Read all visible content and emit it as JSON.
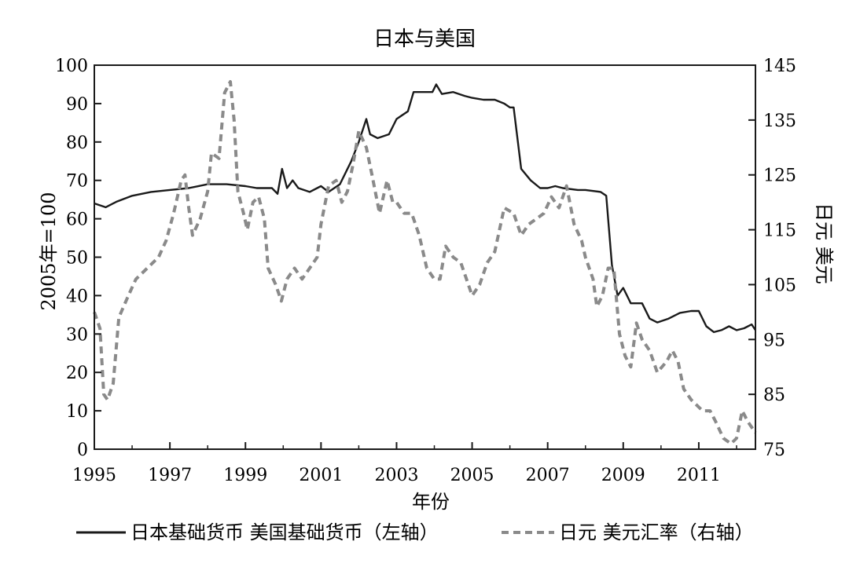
{
  "chart_data": {
    "type": "line",
    "title": "日本与美国",
    "xlabel": "年份",
    "ylabel_left": "2005年=100",
    "ylabel_right": "日元 美元",
    "xlim": [
      1995,
      2012.5
    ],
    "ylim_left": [
      0,
      100
    ],
    "ylim_right": [
      75,
      145
    ],
    "x_ticks": [
      "1995",
      "1997",
      "1999",
      "2001",
      "2003",
      "2005",
      "2007",
      "2009",
      "2011"
    ],
    "y_ticks_left": [
      "0",
      "10",
      "20",
      "30",
      "40",
      "50",
      "60",
      "70",
      "80",
      "90",
      "100"
    ],
    "y_ticks_right": [
      "75",
      "85",
      "95",
      "105",
      "115",
      "125",
      "135",
      "145"
    ],
    "legend_position": "bottom",
    "grid": false,
    "series": [
      {
        "name": "日本基础货币 美国基础货币（左轴）",
        "axis": "left",
        "style": "solid",
        "color": "#1a1a1a",
        "points": [
          [
            1995.0,
            64
          ],
          [
            1995.3,
            63
          ],
          [
            1995.6,
            64.5
          ],
          [
            1996.0,
            66
          ],
          [
            1996.5,
            67
          ],
          [
            1997.0,
            67.5
          ],
          [
            1997.5,
            68
          ],
          [
            1998.0,
            69
          ],
          [
            1998.5,
            69
          ],
          [
            1999.0,
            68.5
          ],
          [
            1999.3,
            68
          ],
          [
            1999.7,
            68
          ],
          [
            1999.85,
            66.5
          ],
          [
            1999.97,
            73
          ],
          [
            2000.1,
            68
          ],
          [
            2000.25,
            70
          ],
          [
            2000.4,
            68
          ],
          [
            2000.7,
            67
          ],
          [
            2001.0,
            68.5
          ],
          [
            2001.2,
            67
          ],
          [
            2001.5,
            69
          ],
          [
            2001.8,
            75
          ],
          [
            2002.0,
            80
          ],
          [
            2002.2,
            86
          ],
          [
            2002.3,
            82
          ],
          [
            2002.5,
            81
          ],
          [
            2002.8,
            82
          ],
          [
            2003.0,
            86
          ],
          [
            2003.3,
            88
          ],
          [
            2003.45,
            93
          ],
          [
            2003.7,
            93
          ],
          [
            2003.95,
            93
          ],
          [
            2004.05,
            95
          ],
          [
            2004.2,
            92.5
          ],
          [
            2004.5,
            93
          ],
          [
            2004.8,
            92
          ],
          [
            2005.0,
            91.5
          ],
          [
            2005.3,
            91
          ],
          [
            2005.6,
            91
          ],
          [
            2005.85,
            90
          ],
          [
            2006.0,
            89
          ],
          [
            2006.1,
            89
          ],
          [
            2006.3,
            73
          ],
          [
            2006.55,
            70
          ],
          [
            2006.8,
            68
          ],
          [
            2007.0,
            68
          ],
          [
            2007.2,
            68.5
          ],
          [
            2007.4,
            68
          ],
          [
            2007.8,
            67.5
          ],
          [
            2008.0,
            67.5
          ],
          [
            2008.4,
            67
          ],
          [
            2008.55,
            66
          ],
          [
            2008.7,
            48
          ],
          [
            2008.85,
            40
          ],
          [
            2009.0,
            42
          ],
          [
            2009.2,
            38
          ],
          [
            2009.5,
            38
          ],
          [
            2009.7,
            34
          ],
          [
            2009.9,
            33
          ],
          [
            2010.2,
            34
          ],
          [
            2010.5,
            35.5
          ],
          [
            2010.8,
            36
          ],
          [
            2011.0,
            36
          ],
          [
            2011.2,
            32
          ],
          [
            2011.4,
            30.5
          ],
          [
            2011.6,
            31
          ],
          [
            2011.8,
            32
          ],
          [
            2012.0,
            31
          ],
          [
            2012.2,
            31.5
          ],
          [
            2012.4,
            32.5
          ],
          [
            2012.5,
            31
          ]
        ]
      },
      {
        "name": "日元 美元汇率（右轴）",
        "axis": "right",
        "style": "dashed",
        "color": "#8a8a8a",
        "points": [
          [
            1995.0,
            100
          ],
          [
            1995.15,
            97
          ],
          [
            1995.25,
            85
          ],
          [
            1995.35,
            84
          ],
          [
            1995.5,
            87
          ],
          [
            1995.65,
            99
          ],
          [
            1995.9,
            103
          ],
          [
            1996.1,
            106
          ],
          [
            1996.4,
            108
          ],
          [
            1996.7,
            110
          ],
          [
            1996.9,
            113
          ],
          [
            1997.1,
            118
          ],
          [
            1997.3,
            124
          ],
          [
            1997.4,
            125
          ],
          [
            1997.5,
            119
          ],
          [
            1997.6,
            114
          ],
          [
            1997.8,
            117
          ],
          [
            1998.0,
            122
          ],
          [
            1998.1,
            129
          ],
          [
            1998.3,
            128
          ],
          [
            1998.45,
            140
          ],
          [
            1998.6,
            142
          ],
          [
            1998.7,
            135
          ],
          [
            1998.8,
            122
          ],
          [
            1998.95,
            118
          ],
          [
            1999.05,
            115
          ],
          [
            1999.2,
            120
          ],
          [
            1999.35,
            121
          ],
          [
            1999.5,
            117
          ],
          [
            1999.6,
            108
          ],
          [
            1999.8,
            105
          ],
          [
            1999.95,
            102
          ],
          [
            2000.1,
            106
          ],
          [
            2000.3,
            108
          ],
          [
            2000.5,
            106
          ],
          [
            2000.7,
            108
          ],
          [
            2000.9,
            110
          ],
          [
            2001.0,
            116
          ],
          [
            2001.2,
            123
          ],
          [
            2001.4,
            124
          ],
          [
            2001.55,
            120
          ],
          [
            2001.7,
            122
          ],
          [
            2001.85,
            127
          ],
          [
            2002.0,
            133
          ],
          [
            2002.2,
            130
          ],
          [
            2002.35,
            125
          ],
          [
            2002.55,
            118
          ],
          [
            2002.75,
            124
          ],
          [
            2002.9,
            120
          ],
          [
            2003.0,
            120
          ],
          [
            2003.2,
            118
          ],
          [
            2003.4,
            118
          ],
          [
            2003.6,
            114
          ],
          [
            2003.8,
            108
          ],
          [
            2004.0,
            106
          ],
          [
            2004.15,
            106
          ],
          [
            2004.3,
            112
          ],
          [
            2004.5,
            110
          ],
          [
            2004.7,
            109
          ],
          [
            2004.9,
            105
          ],
          [
            2005.0,
            103
          ],
          [
            2005.2,
            105
          ],
          [
            2005.4,
            109
          ],
          [
            2005.6,
            111
          ],
          [
            2005.85,
            119
          ],
          [
            2006.1,
            118
          ],
          [
            2006.3,
            114
          ],
          [
            2006.5,
            116
          ],
          [
            2006.7,
            117
          ],
          [
            2006.9,
            118
          ],
          [
            2007.1,
            121
          ],
          [
            2007.3,
            119
          ],
          [
            2007.5,
            123
          ],
          [
            2007.7,
            116
          ],
          [
            2007.9,
            113
          ],
          [
            2008.0,
            110
          ],
          [
            2008.2,
            106
          ],
          [
            2008.3,
            101
          ],
          [
            2008.45,
            103
          ],
          [
            2008.6,
            108
          ],
          [
            2008.75,
            108
          ],
          [
            2008.9,
            96
          ],
          [
            2009.05,
            92
          ],
          [
            2009.2,
            90
          ],
          [
            2009.35,
            98
          ],
          [
            2009.5,
            95
          ],
          [
            2009.7,
            93
          ],
          [
            2009.9,
            89
          ],
          [
            2010.15,
            91
          ],
          [
            2010.3,
            93
          ],
          [
            2010.45,
            91
          ],
          [
            2010.6,
            86
          ],
          [
            2010.8,
            84
          ],
          [
            2010.95,
            83
          ],
          [
            2011.1,
            82
          ],
          [
            2011.3,
            82
          ],
          [
            2011.45,
            80
          ],
          [
            2011.65,
            77
          ],
          [
            2011.85,
            76
          ],
          [
            2012.0,
            77
          ],
          [
            2012.15,
            82
          ],
          [
            2012.3,
            80
          ],
          [
            2012.5,
            78
          ]
        ]
      }
    ]
  }
}
